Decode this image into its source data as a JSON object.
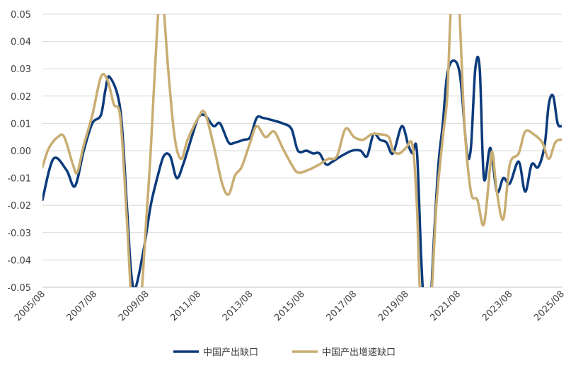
{
  "chart_data": {
    "type": "line",
    "title": "",
    "xlabel": "",
    "ylabel": "",
    "ylim": [
      -0.05,
      0.05
    ],
    "y_ticks": [
      "0.05",
      "0.04",
      "0.03",
      "0.02",
      "0.01",
      "0.00",
      "-0.01",
      "-0.02",
      "-0.03",
      "-0.04",
      "-0.05"
    ],
    "x_ticks": [
      "2005/08",
      "2007/08",
      "2009/08",
      "2011/08",
      "2013/08",
      "2015/08",
      "2017/08",
      "2019/08",
      "2021/08",
      "2023/08",
      "2025/08"
    ],
    "grid": "horizontal",
    "legend_position": "bottom",
    "series": [
      {
        "name": "中国产出缺口",
        "color": "#0c3b7c",
        "points": [
          [
            2005.58,
            -0.018
          ],
          [
            2006.0,
            -0.003
          ],
          [
            2006.5,
            -0.007
          ],
          [
            2006.83,
            -0.013
          ],
          [
            2007.17,
            0.0
          ],
          [
            2007.5,
            0.01
          ],
          [
            2007.83,
            0.013
          ],
          [
            2008.0,
            0.022
          ],
          [
            2008.17,
            0.027
          ],
          [
            2008.58,
            0.015
          ],
          [
            2008.83,
            -0.02
          ],
          [
            2009.0,
            -0.045
          ],
          [
            2009.17,
            -0.05
          ],
          [
            2009.5,
            -0.035
          ],
          [
            2009.75,
            -0.02
          ],
          [
            2010.0,
            -0.01
          ],
          [
            2010.25,
            -0.002
          ],
          [
            2010.5,
            -0.002
          ],
          [
            2010.75,
            -0.01
          ],
          [
            2011.0,
            -0.005
          ],
          [
            2011.33,
            0.005
          ],
          [
            2011.58,
            0.012
          ],
          [
            2011.83,
            0.013
          ],
          [
            2012.17,
            0.009
          ],
          [
            2012.42,
            0.01
          ],
          [
            2012.75,
            0.003
          ],
          [
            2013.0,
            0.003
          ],
          [
            2013.33,
            0.004
          ],
          [
            2013.58,
            0.005
          ],
          [
            2013.83,
            0.012
          ],
          [
            2014.08,
            0.012
          ],
          [
            2014.5,
            0.011
          ],
          [
            2014.83,
            0.01
          ],
          [
            2015.17,
            0.008
          ],
          [
            2015.42,
            0.0
          ],
          [
            2015.75,
            0.0
          ],
          [
            2016.0,
            -0.001
          ],
          [
            2016.25,
            -0.001
          ],
          [
            2016.5,
            -0.005
          ],
          [
            2016.75,
            -0.004
          ],
          [
            2017.08,
            -0.002
          ],
          [
            2017.5,
            0.0
          ],
          [
            2017.83,
            0.0
          ],
          [
            2018.08,
            -0.002
          ],
          [
            2018.33,
            0.006
          ],
          [
            2018.58,
            0.004
          ],
          [
            2018.83,
            0.003
          ],
          [
            2019.08,
            -0.001
          ],
          [
            2019.42,
            0.009
          ],
          [
            2019.67,
            0.002
          ],
          [
            2019.83,
            -0.001
          ],
          [
            2020.0,
            0.0
          ],
          [
            2020.17,
            -0.04
          ],
          [
            2020.33,
            -0.065
          ],
          [
            2020.5,
            -0.06
          ],
          [
            2020.67,
            -0.03
          ],
          [
            2020.83,
            -0.005
          ],
          [
            2021.0,
            0.01
          ],
          [
            2021.17,
            0.028
          ],
          [
            2021.42,
            0.033
          ],
          [
            2021.67,
            0.027
          ],
          [
            2021.92,
            0.0
          ],
          [
            2022.08,
            0.001
          ],
          [
            2022.25,
            0.03
          ],
          [
            2022.42,
            0.03
          ],
          [
            2022.58,
            -0.01
          ],
          [
            2022.83,
            0.001
          ],
          [
            2023.08,
            -0.015
          ],
          [
            2023.33,
            -0.01
          ],
          [
            2023.58,
            -0.012
          ],
          [
            2023.92,
            -0.004
          ],
          [
            2024.17,
            -0.015
          ],
          [
            2024.42,
            -0.005
          ],
          [
            2024.67,
            -0.006
          ],
          [
            2024.92,
            0.002
          ],
          [
            2025.08,
            0.017
          ],
          [
            2025.25,
            0.02
          ],
          [
            2025.42,
            0.01
          ],
          [
            2025.58,
            0.009
          ]
        ]
      },
      {
        "name": "中国产出增速缺口",
        "color": "#c9ad72",
        "points": [
          [
            2005.58,
            -0.006
          ],
          [
            2005.83,
            0.001
          ],
          [
            2006.17,
            0.005
          ],
          [
            2006.42,
            0.005
          ],
          [
            2006.75,
            -0.005
          ],
          [
            2006.92,
            -0.008
          ],
          [
            2007.17,
            0.002
          ],
          [
            2007.5,
            0.013
          ],
          [
            2007.83,
            0.027
          ],
          [
            2008.08,
            0.026
          ],
          [
            2008.33,
            0.017
          ],
          [
            2008.58,
            0.012
          ],
          [
            2008.83,
            -0.025
          ],
          [
            2009.08,
            -0.065
          ],
          [
            2009.33,
            -0.06
          ],
          [
            2009.58,
            -0.025
          ],
          [
            2009.75,
            0.0
          ],
          [
            2010.0,
            0.045
          ],
          [
            2010.17,
            0.06
          ],
          [
            2010.42,
            0.03
          ],
          [
            2010.67,
            0.005
          ],
          [
            2010.92,
            -0.003
          ],
          [
            2011.17,
            0.004
          ],
          [
            2011.58,
            0.012
          ],
          [
            2011.83,
            0.014
          ],
          [
            2012.17,
            0.002
          ],
          [
            2012.5,
            -0.012
          ],
          [
            2012.75,
            -0.016
          ],
          [
            2013.0,
            -0.009
          ],
          [
            2013.25,
            -0.006
          ],
          [
            2013.58,
            0.003
          ],
          [
            2013.83,
            0.009
          ],
          [
            2014.17,
            0.005
          ],
          [
            2014.5,
            0.007
          ],
          [
            2014.83,
            0.001
          ],
          [
            2015.17,
            -0.005
          ],
          [
            2015.42,
            -0.008
          ],
          [
            2015.83,
            -0.007
          ],
          [
            2016.25,
            -0.005
          ],
          [
            2016.58,
            -0.003
          ],
          [
            2016.92,
            -0.002
          ],
          [
            2017.25,
            0.008
          ],
          [
            2017.58,
            0.005
          ],
          [
            2017.92,
            0.004
          ],
          [
            2018.25,
            0.006
          ],
          [
            2018.58,
            0.006
          ],
          [
            2018.92,
            0.005
          ],
          [
            2019.08,
            0.0
          ],
          [
            2019.33,
            -0.001
          ],
          [
            2019.58,
            0.001
          ],
          [
            2019.83,
            0.002
          ],
          [
            2020.0,
            -0.02
          ],
          [
            2020.17,
            -0.06
          ],
          [
            2020.5,
            -0.06
          ],
          [
            2020.75,
            -0.02
          ],
          [
            2021.0,
            0.005
          ],
          [
            2021.17,
            0.02
          ],
          [
            2021.33,
            0.055
          ],
          [
            2021.58,
            0.06
          ],
          [
            2021.83,
            0.01
          ],
          [
            2022.08,
            -0.015
          ],
          [
            2022.33,
            -0.018
          ],
          [
            2022.58,
            -0.027
          ],
          [
            2022.83,
            -0.005
          ],
          [
            2022.92,
            -0.001
          ],
          [
            2023.08,
            -0.015
          ],
          [
            2023.33,
            -0.025
          ],
          [
            2023.58,
            -0.005
          ],
          [
            2023.92,
            -0.001
          ],
          [
            2024.17,
            0.007
          ],
          [
            2024.5,
            0.006
          ],
          [
            2024.83,
            0.003
          ],
          [
            2025.08,
            -0.003
          ],
          [
            2025.33,
            0.003
          ],
          [
            2025.58,
            0.004
          ],
          [
            2025.75,
            0.0025
          ]
        ]
      }
    ]
  }
}
